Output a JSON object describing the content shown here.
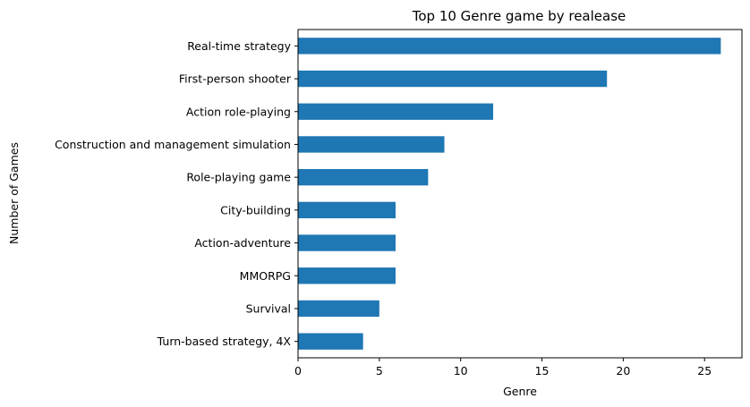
{
  "chart_data": {
    "type": "bar",
    "orientation": "horizontal",
    "title": "Top 10 Genre game by realease",
    "xlabel": "Genre",
    "ylabel": "Number of Games",
    "categories": [
      "Real-time strategy",
      "First-person shooter",
      "Action role-playing",
      "Construction and management simulation",
      "Role-playing game",
      "City-building",
      "Action-adventure",
      "MMORPG",
      "Survival",
      "Turn-based strategy, 4X"
    ],
    "values": [
      26,
      19,
      12,
      9,
      8,
      6,
      6,
      6,
      5,
      4
    ],
    "xlim": [
      0,
      27.3
    ],
    "xticks": [
      0,
      5,
      10,
      15,
      20,
      25
    ],
    "grid": false,
    "legend": "none",
    "bar_color": "#1f77b4"
  }
}
